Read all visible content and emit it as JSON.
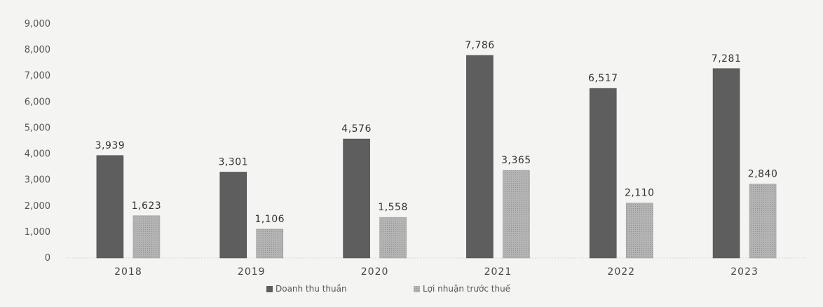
{
  "chart_data": {
    "type": "bar",
    "categories": [
      "2018",
      "2019",
      "2020",
      "2021",
      "2022",
      "2023"
    ],
    "series": [
      {
        "name": "Doanh thu thuần",
        "values": [
          3939,
          3301,
          4576,
          7786,
          6517,
          7281
        ]
      },
      {
        "name": "Lợi nhuận trước thuế",
        "values": [
          1623,
          1106,
          1558,
          3365,
          2110,
          2840
        ]
      }
    ],
    "value_labels": [
      [
        "3,939",
        "3,301",
        "4,576",
        "7,786",
        "6,517",
        "7,281"
      ],
      [
        "1,623",
        "1,106",
        "1,558",
        "3,365",
        "2,110",
        "2,840"
      ]
    ],
    "yticks": [
      "0",
      "1,000",
      "2,000",
      "3,000",
      "4,000",
      "5,000",
      "6,000",
      "7,000",
      "8,000",
      "9,000"
    ],
    "ylim": [
      0,
      9000
    ],
    "grid": false,
    "legend_position": "bottom-center",
    "colors": [
      "#5e5e5e",
      "#acacac"
    ]
  }
}
